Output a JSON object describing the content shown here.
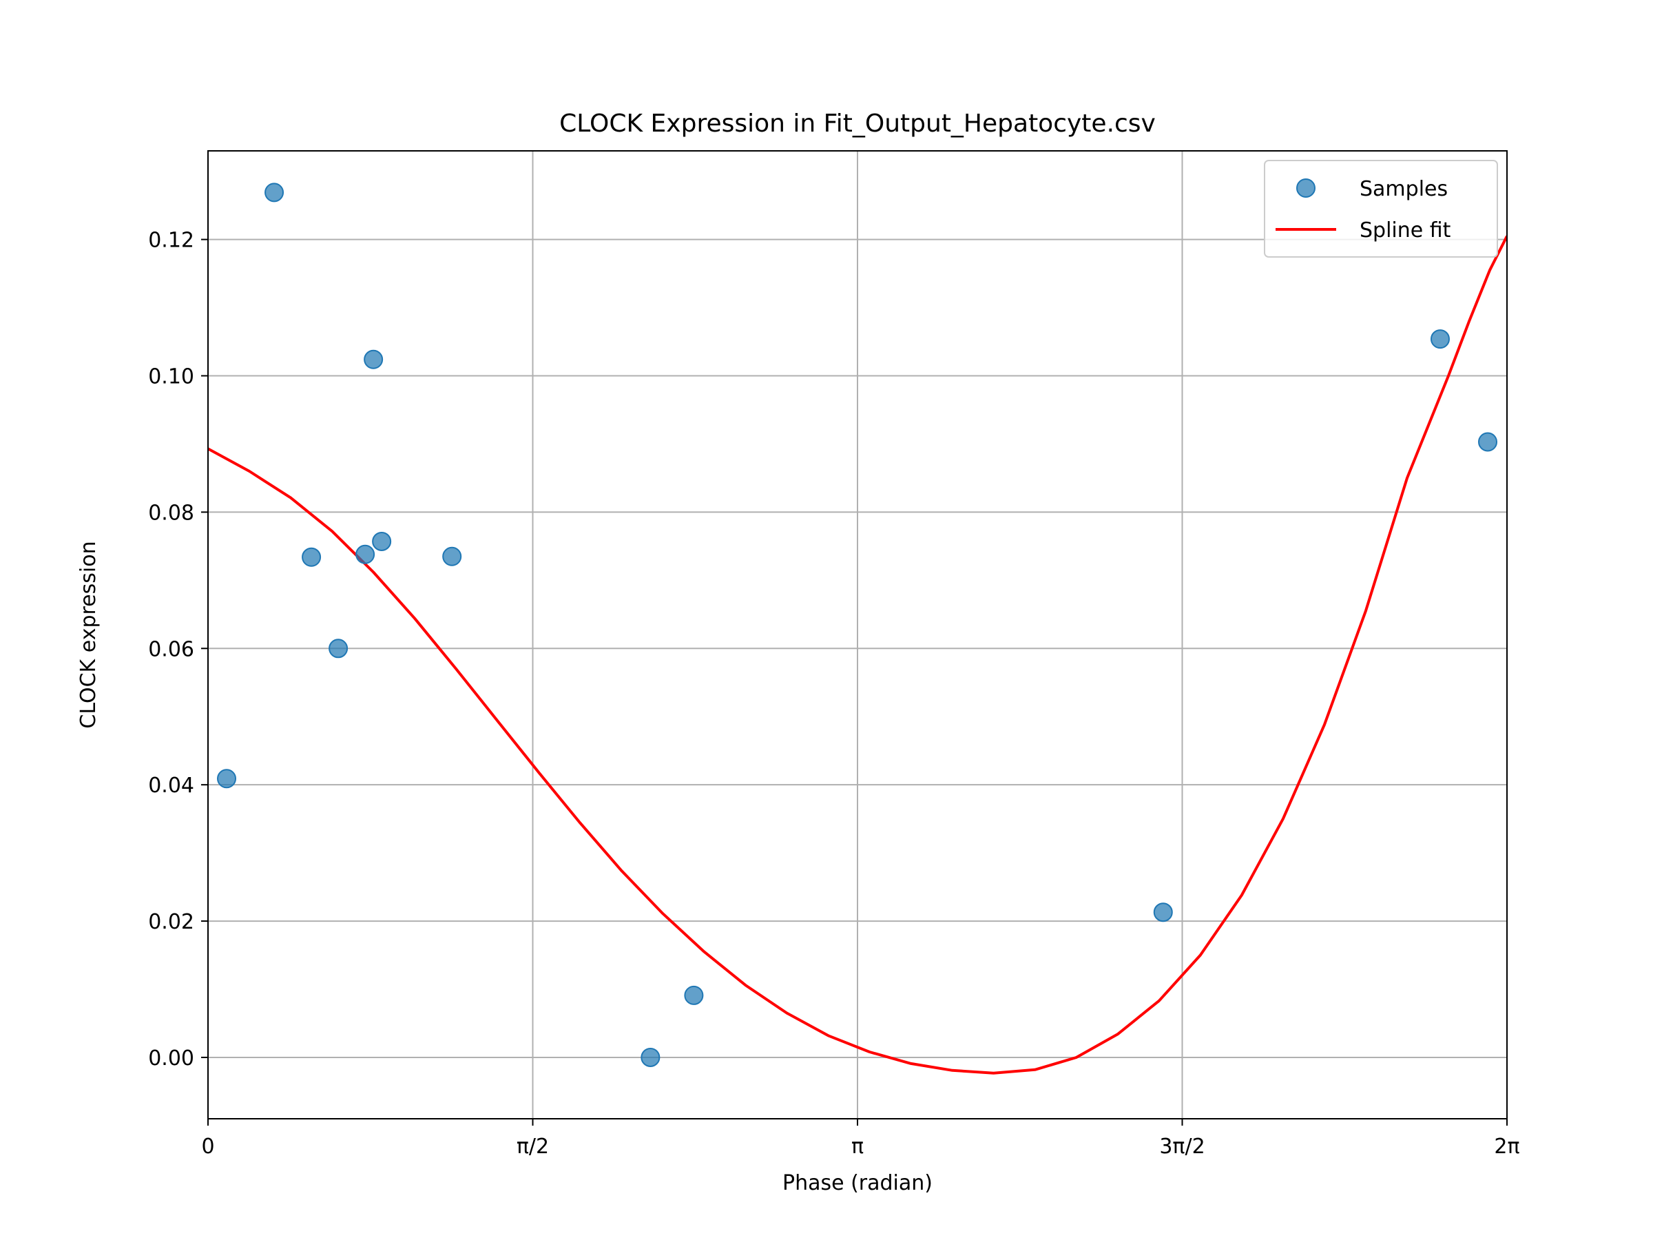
{
  "chart_data": {
    "type": "scatter",
    "title": "CLOCK Expression in Fit_Output_Hepatocyte.csv",
    "xlabel": "Phase (radian)",
    "ylabel": "CLOCK expression",
    "xlim": [
      0,
      6.2832
    ],
    "ylim": [
      -0.009,
      0.133
    ],
    "x_ticks": [
      {
        "value": 0,
        "label": "0"
      },
      {
        "value": 1.5708,
        "label": "π/2"
      },
      {
        "value": 3.1416,
        "label": "π"
      },
      {
        "value": 4.7124,
        "label": "3π/2"
      },
      {
        "value": 6.2832,
        "label": "2π"
      }
    ],
    "y_ticks": [
      {
        "value": 0.0,
        "label": "0.00"
      },
      {
        "value": 0.02,
        "label": "0.02"
      },
      {
        "value": 0.04,
        "label": "0.04"
      },
      {
        "value": 0.06,
        "label": "0.06"
      },
      {
        "value": 0.08,
        "label": "0.08"
      },
      {
        "value": 0.1,
        "label": "0.10"
      },
      {
        "value": 0.12,
        "label": "0.12"
      }
    ],
    "grid": true,
    "legend_position": "top-right",
    "series": [
      {
        "name": "Samples",
        "kind": "scatter",
        "color": "#1f77b4",
        "points": [
          {
            "x": 0.09,
            "y": 0.0409
          },
          {
            "x": 0.32,
            "y": 0.1269
          },
          {
            "x": 0.5,
            "y": 0.0734
          },
          {
            "x": 0.63,
            "y": 0.06
          },
          {
            "x": 0.76,
            "y": 0.0738
          },
          {
            "x": 0.8,
            "y": 0.1024
          },
          {
            "x": 0.84,
            "y": 0.0757
          },
          {
            "x": 1.18,
            "y": 0.0735
          },
          {
            "x": 2.14,
            "y": 0.0
          },
          {
            "x": 2.35,
            "y": 0.0091
          },
          {
            "x": 4.62,
            "y": 0.0213
          },
          {
            "x": 5.96,
            "y": 0.1054
          },
          {
            "x": 6.19,
            "y": 0.0903
          }
        ]
      },
      {
        "name": "Spline fit",
        "kind": "line",
        "color": "#ff0000",
        "points": [
          {
            "x": 0.0,
            "y": 0.0893
          },
          {
            "x": 0.2,
            "y": 0.086
          },
          {
            "x": 0.4,
            "y": 0.0821
          },
          {
            "x": 0.6,
            "y": 0.0772
          },
          {
            "x": 0.8,
            "y": 0.0712
          },
          {
            "x": 1.0,
            "y": 0.0644
          },
          {
            "x": 1.2,
            "y": 0.057
          },
          {
            "x": 1.4,
            "y": 0.0494
          },
          {
            "x": 1.6,
            "y": 0.0418
          },
          {
            "x": 1.8,
            "y": 0.0344
          },
          {
            "x": 2.0,
            "y": 0.0274
          },
          {
            "x": 2.2,
            "y": 0.0211
          },
          {
            "x": 2.4,
            "y": 0.0155
          },
          {
            "x": 2.6,
            "y": 0.0106
          },
          {
            "x": 2.8,
            "y": 0.0065
          },
          {
            "x": 3.0,
            "y": 0.0032
          },
          {
            "x": 3.2,
            "y": 0.0008
          },
          {
            "x": 3.4,
            "y": -0.0009
          },
          {
            "x": 3.6,
            "y": -0.0019
          },
          {
            "x": 3.8,
            "y": -0.0023
          },
          {
            "x": 4.0,
            "y": -0.0018
          },
          {
            "x": 4.2,
            "y": 0.0
          },
          {
            "x": 4.4,
            "y": 0.0034
          },
          {
            "x": 4.6,
            "y": 0.0083
          },
          {
            "x": 4.8,
            "y": 0.015
          },
          {
            "x": 5.0,
            "y": 0.0238
          },
          {
            "x": 5.2,
            "y": 0.035
          },
          {
            "x": 5.4,
            "y": 0.0488
          },
          {
            "x": 5.6,
            "y": 0.0655
          },
          {
            "x": 5.8,
            "y": 0.085
          },
          {
            "x": 6.0,
            "y": 0.1
          },
          {
            "x": 6.1,
            "y": 0.108
          },
          {
            "x": 6.2,
            "y": 0.1155
          },
          {
            "x": 6.2832,
            "y": 0.1205
          }
        ]
      }
    ]
  }
}
